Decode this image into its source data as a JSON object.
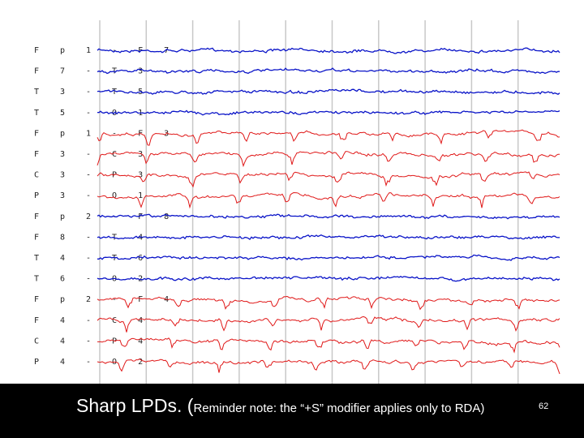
{
  "montage": {
    "groups": [
      {
        "color": "#0a14c8",
        "channels": [
          "Fp1-F7",
          "F7-T3",
          "T3-T5",
          "T5-O1"
        ]
      },
      {
        "color": "#e01818",
        "channels": [
          "Fp1-F3",
          "F3-C3",
          "C3-P3",
          "P3-O1"
        ]
      },
      {
        "color": "#0a14c8",
        "channels": [
          "Fp2-F8",
          "F8-T4",
          "T4-T6",
          "T6-O2"
        ]
      },
      {
        "color": "#e01818",
        "channels": [
          "Fp2-F4",
          "F4-C4",
          "C4-P4",
          "P4-O2"
        ]
      }
    ]
  },
  "caption": {
    "main": "Sharp LPDs. (",
    "note": "Reminder note: the “+S” modifier applies only to RDA)"
  },
  "page_number": "62"
}
